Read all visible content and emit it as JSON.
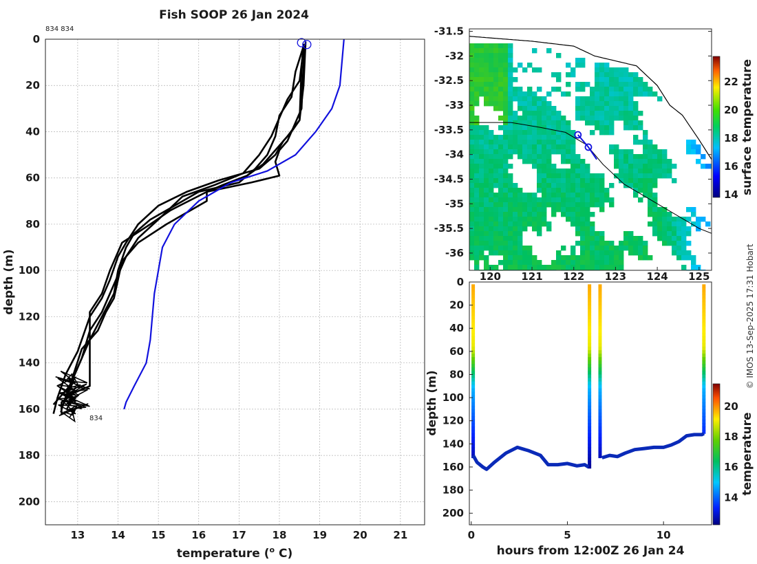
{
  "title": "Fish SOOP 26 Jan 2024",
  "credit": "© IMOS 13-Sep-2025 17:31 Hobart",
  "chart_data": [
    {
      "type": "line",
      "name": "temperature-profile",
      "xlabel": "temperature (",
      "xlabel_sup": "o",
      "xlabel_tail": " C)",
      "ylabel": "depth (m)",
      "xlim": [
        12.2,
        21.6
      ],
      "ylim": [
        0,
        210
      ],
      "xticks": [
        "13",
        "14",
        "15",
        "16",
        "17",
        "18",
        "19",
        "20",
        "21"
      ],
      "yticks": [
        "0",
        "20",
        "40",
        "60",
        "80",
        "100",
        "120",
        "140",
        "160",
        "180",
        "200"
      ],
      "profile_labels": [
        "834 834",
        "834"
      ],
      "climatology_series": {
        "name": "climatology",
        "color": "#1111dd",
        "temp": [
          19.6,
          19.5,
          19.3,
          18.9,
          18.4,
          17.7,
          16.8,
          16.0,
          15.4,
          15.1,
          14.9,
          14.8,
          14.7,
          14.4,
          14.2,
          14.15
        ],
        "depth": [
          0,
          20,
          30,
          40,
          50,
          57,
          62,
          70,
          80,
          90,
          110,
          130,
          140,
          150,
          157,
          160
        ]
      },
      "profiles": [
        {
          "temp": [
            18.6,
            18.6,
            18.55,
            18.3,
            18.2,
            18.0,
            17.9,
            18.0,
            17.3,
            16.2,
            15.3,
            14.8,
            14.1,
            13.8,
            13.6,
            13.3,
            13.3,
            13.3,
            13.3,
            12.9,
            12.6,
            12.6
          ],
          "depth": [
            2,
            10,
            30,
            40,
            44,
            48,
            53,
            59,
            62,
            66,
            74,
            80,
            88,
            100,
            110,
            118,
            130,
            140,
            150,
            153,
            157,
            162
          ]
        },
        {
          "temp": [
            18.6,
            18.55,
            18.5,
            18.3,
            18.1,
            17.9,
            17.5,
            16.5,
            15.7,
            15.0,
            14.5,
            14.2,
            14.0,
            13.8,
            13.6,
            13.3,
            13.0,
            12.7,
            12.5,
            12.4
          ],
          "depth": [
            2,
            12,
            35,
            40,
            44,
            50,
            56,
            61,
            66,
            72,
            80,
            88,
            94,
            104,
            112,
            120,
            135,
            145,
            155,
            162
          ]
        },
        {
          "temp": [
            18.6,
            18.4,
            18.3,
            18.0,
            17.9,
            17.7,
            17.4,
            17.0,
            16.5,
            16.0,
            15.4,
            14.8,
            14.4,
            14.2,
            14.0,
            13.9,
            13.6,
            13.3,
            13.0,
            12.8,
            12.6
          ],
          "depth": [
            3,
            14,
            25,
            33,
            42,
            50,
            56,
            62,
            64,
            66,
            72,
            78,
            84,
            90,
            100,
            110,
            120,
            130,
            142,
            150,
            160
          ]
        },
        {
          "temp": [
            18.6,
            18.5,
            18.2,
            18.0,
            17.8,
            17.5,
            17.1,
            16.4,
            15.6,
            15.0,
            14.5,
            14.2,
            14.0,
            13.8,
            13.6,
            13.3,
            13.1,
            12.8,
            12.6
          ],
          "depth": [
            4,
            18,
            26,
            34,
            42,
            50,
            58,
            63,
            68,
            78,
            86,
            94,
            102,
            110,
            118,
            126,
            138,
            150,
            160
          ]
        },
        {
          "temp": [
            18.65,
            18.6,
            18.5,
            18.2,
            17.9,
            17.6,
            17.2,
            16.6,
            16.2,
            16.2,
            15.2,
            14.5,
            14.1,
            14.0,
            13.9,
            13.7,
            13.5,
            13.1,
            12.8,
            12.4
          ],
          "depth": [
            1,
            20,
            35,
            42,
            48,
            54,
            59,
            63,
            66,
            70,
            80,
            88,
            96,
            104,
            112,
            118,
            126,
            134,
            150,
            158
          ]
        }
      ]
    },
    {
      "type": "heatmap",
      "name": "surface-temperature-map",
      "colorbar_label": "surface temperature",
      "xlim": [
        119.5,
        125.3
      ],
      "ylim": [
        -36.35,
        -31.45
      ],
      "xticks": [
        "120",
        "121",
        "122",
        "123",
        "124",
        "125"
      ],
      "yticks": [
        "-31.5",
        "-32",
        "-32.5",
        "-33",
        "-33.5",
        "-34",
        "-34.5",
        "-35",
        "-35.5",
        "-36"
      ],
      "colorbar_ticks": [
        "14",
        "16",
        "18",
        "20",
        "22"
      ],
      "colorbar_range": [
        13.8,
        23.8
      ],
      "track": {
        "lon": [
          122.1,
          122.35,
          122.55
        ],
        "lat": [
          -33.6,
          -33.85,
          -34.1
        ]
      }
    },
    {
      "type": "scatter",
      "name": "depth-time-section",
      "xlabel": "hours from 12:00Z 26 Jan 24",
      "ylabel": "depth (m)",
      "colorbar_label": "temperature",
      "xlim": [
        -0.1,
        12.5
      ],
      "ylim": [
        0,
        210
      ],
      "xticks": [
        "0",
        "5",
        "10"
      ],
      "yticks": [
        "0",
        "20",
        "40",
        "60",
        "80",
        "100",
        "120",
        "140",
        "160",
        "180",
        "200"
      ],
      "colorbar_ticks": [
        "14",
        "16",
        "18",
        "20"
      ],
      "colorbar_range": [
        12.2,
        21.5
      ],
      "bottom_trace": {
        "hours": [
          0.1,
          0.3,
          0.6,
          0.8,
          1.2,
          1.8,
          2.4,
          3.0,
          3.6,
          4.0,
          4.5,
          5.0,
          5.5,
          5.9,
          6.1,
          6.8,
          7.2,
          7.6,
          8.0,
          8.5,
          9.0,
          9.5,
          10.0,
          10.4,
          10.8,
          11.2,
          11.6,
          12.0,
          12.1
        ],
        "depth": [
          150,
          156,
          160,
          162,
          156,
          148,
          143,
          146,
          150,
          158,
          158,
          157,
          159,
          158,
          160,
          152,
          150,
          151,
          148,
          145,
          144,
          143,
          143,
          141,
          138,
          133,
          132,
          132,
          131
        ]
      },
      "casts": [
        {
          "hours": 0.1,
          "bottom": 150
        },
        {
          "hours": 6.15,
          "bottom": 160
        },
        {
          "hours": 6.7,
          "bottom": 152
        },
        {
          "hours": 12.1,
          "bottom": 131
        }
      ]
    }
  ]
}
